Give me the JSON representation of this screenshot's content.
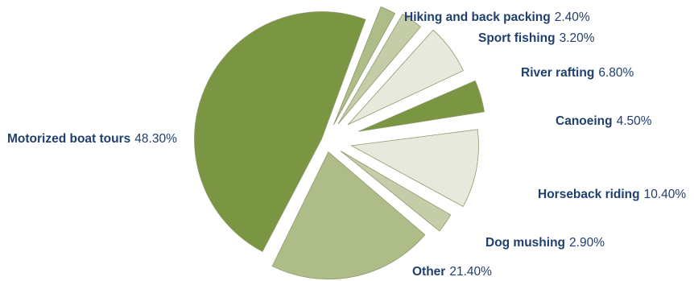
{
  "chart_data": {
    "type": "pie",
    "title": "",
    "slices": [
      {
        "name": "Hiking and back packing",
        "value": 2.4,
        "value_label": "2.40%",
        "color": "#aebc88"
      },
      {
        "name": "Sport fishing",
        "value": 3.2,
        "value_label": "3.20%",
        "color": "#c5cda8"
      },
      {
        "name": "River rafting",
        "value": 6.8,
        "value_label": "6.80%",
        "color": "#e6e9dc"
      },
      {
        "name": "Canoeing",
        "value": 4.5,
        "value_label": "4.50%",
        "color": "#7a9642"
      },
      {
        "name": "Horseback riding",
        "value": 10.4,
        "value_label": "10.40%",
        "color": "#e6e9dc"
      },
      {
        "name": "Dog mushing",
        "value": 2.9,
        "value_label": "2.90%",
        "color": "#c5cda8"
      },
      {
        "name": "Other",
        "value": 21.4,
        "value_label": "21.40%",
        "color": "#aebc88"
      },
      {
        "name": "Motorized boat tours",
        "value": 48.3,
        "value_label": "48.30%",
        "color": "#7a9642"
      }
    ],
    "slice_edge_color": "#8c9a6a",
    "label_name_color": "#1f3f6e",
    "label_value_color": "#1f3f6e",
    "exploded": true,
    "legend": "none"
  }
}
